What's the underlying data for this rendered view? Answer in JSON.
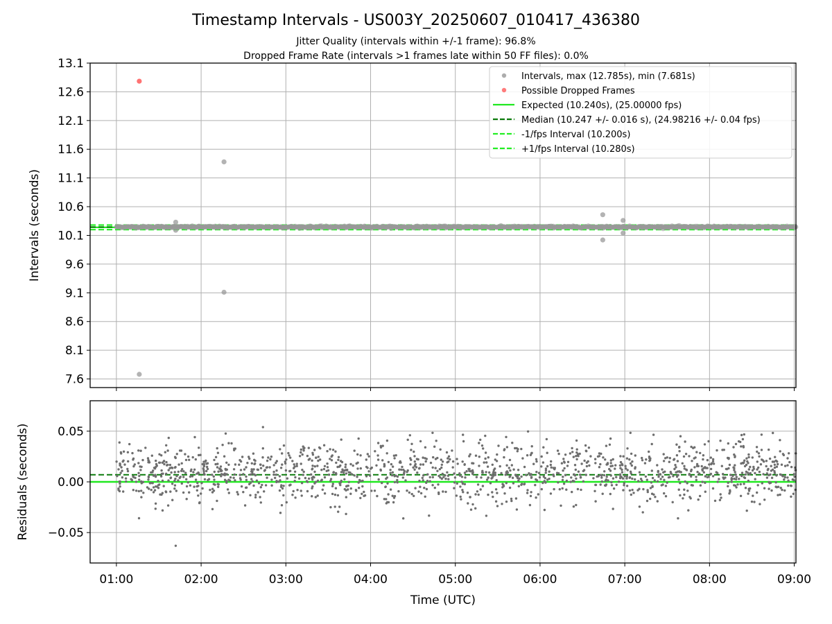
{
  "title": "Timestamp Intervals - US003Y_20250607_010417_436380",
  "subtitle1": "Jitter Quality (intervals within +/-1 frame): 96.8%",
  "subtitle2": "Dropped Frame Rate (intervals >1 frames late within 50 FF files): 0.0%",
  "colors": {
    "interval_points": "#999999",
    "dropped_points": "#ff5a5a",
    "expected_line": "#1fe81f",
    "median_line": "#0a7a0a",
    "fps_interval_lines": "#22ee22",
    "residual_points": "#6e6e6e",
    "grid": "#b0b0b0"
  },
  "chart_data": [
    {
      "type": "scatter",
      "panel": "top",
      "ylabel": "Intervals (seconds)",
      "xlabel": "",
      "ylim": [
        7.45,
        13.1
      ],
      "yticks": [
        "13.1",
        "12.6",
        "12.1",
        "11.6",
        "11.1",
        "10.6",
        "10.1",
        "9.6",
        "9.1",
        "8.6",
        "8.1",
        "7.6"
      ],
      "ytick_values": [
        13.1,
        12.6,
        12.1,
        11.6,
        11.1,
        10.6,
        10.1,
        9.6,
        9.1,
        8.6,
        8.1,
        7.6
      ],
      "xlim_hours": [
        0.69,
        9.02
      ],
      "grid": true,
      "legend_position": "top-right",
      "legend": [
        {
          "key": "intervals",
          "label": "Intervals, max (12.785s), min (7.681s)",
          "kind": "marker"
        },
        {
          "key": "dropped",
          "label": "Possible Dropped Frames",
          "kind": "marker"
        },
        {
          "key": "expected",
          "label": "Expected (10.240s), (25.00000 fps)",
          "kind": "solid"
        },
        {
          "key": "median",
          "label": "Median (10.247 +/- 0.016 s), (24.98216 +/- 0.04 fps)",
          "kind": "dashed"
        },
        {
          "key": "minus_fps",
          "label": "-1/fps Interval (10.200s)",
          "kind": "dashed"
        },
        {
          "key": "plus_fps",
          "label": "+1/fps Interval (10.280s)",
          "kind": "dashed"
        }
      ],
      "lines": {
        "expected": 10.24,
        "median": 10.247,
        "minus_fps": 10.2,
        "plus_fps": 10.28
      },
      "main_band": {
        "center": 10.247,
        "spread": 0.02,
        "start_hour": 1.0,
        "end_hour": 9.02,
        "count": 1300
      },
      "outliers": [
        {
          "x": 1.27,
          "y": 7.681
        },
        {
          "x": 2.27,
          "y": 11.38
        },
        {
          "x": 2.27,
          "y": 9.11
        },
        {
          "x": 1.7,
          "y": 10.33
        },
        {
          "x": 1.7,
          "y": 10.19
        },
        {
          "x": 6.74,
          "y": 10.46
        },
        {
          "x": 6.74,
          "y": 10.02
        },
        {
          "x": 6.98,
          "y": 10.36
        },
        {
          "x": 6.98,
          "y": 10.14
        }
      ],
      "dropped": [
        {
          "x": 1.27,
          "y": 12.785
        }
      ]
    },
    {
      "type": "scatter",
      "panel": "bottom",
      "ylabel": "Residuals (seconds)",
      "xlabel": "Time (UTC)",
      "ylim": [
        -0.08,
        0.08
      ],
      "yticks": [
        "0.05",
        "0.00",
        "−0.05"
      ],
      "ytick_values": [
        0.05,
        0.0,
        -0.05
      ],
      "xticks": [
        "01:00",
        "02:00",
        "03:00",
        "04:00",
        "05:00",
        "06:00",
        "07:00",
        "08:00",
        "09:00"
      ],
      "xtick_values": [
        1,
        2,
        3,
        4,
        5,
        6,
        7,
        8,
        9
      ],
      "xlim_hours": [
        0.69,
        9.02
      ],
      "grid": true,
      "lines": {
        "zero": 0.0,
        "median": 0.007
      },
      "residuals": {
        "center": 0.009,
        "spread": 0.015,
        "start_hour": 1.0,
        "end_hour": 9.02,
        "count": 1500,
        "min": -0.063,
        "max": 0.054
      }
    }
  ]
}
